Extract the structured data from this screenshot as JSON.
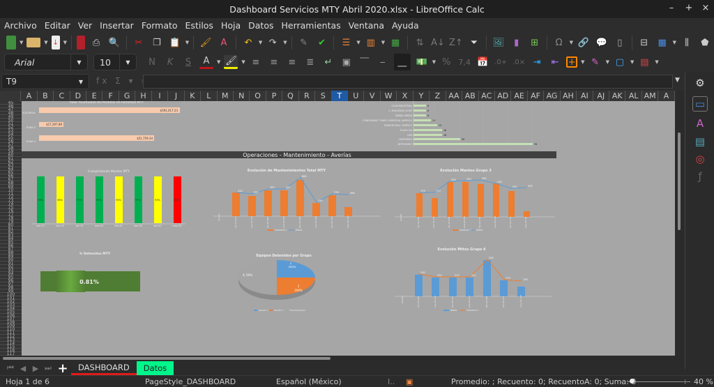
{
  "window": {
    "title": "Dashboard Servicios MTY Abril 2020.xlsx - LibreOffice Calc",
    "controls": [
      "minimize",
      "maximize",
      "close"
    ]
  },
  "menu": [
    "Archivo",
    "Editar",
    "Ver",
    "Insertar",
    "Formato",
    "Estilos",
    "Hoja",
    "Datos",
    "Herramientas",
    "Ventana",
    "Ayuda"
  ],
  "formatting": {
    "font_name": "Arial",
    "font_size": "10",
    "bold": "N",
    "italic": "K",
    "underline": "S",
    "font_color": "#c0141c",
    "highlight_color": "#f0f000"
  },
  "formula_bar": {
    "cell_ref": "T9",
    "content": ""
  },
  "columns": [
    "A",
    "B",
    "C",
    "D",
    "E",
    "F",
    "G",
    "H",
    "I",
    "J",
    "K",
    "L",
    "M",
    "N",
    "O",
    "P",
    "Q",
    "R",
    "S",
    "T",
    "U",
    "V",
    "W",
    "X",
    "Y",
    "Z",
    "AA",
    "AB",
    "AC",
    "AD",
    "AE",
    "AF",
    "AG",
    "AH",
    "AI",
    "AJ",
    "AK",
    "AL",
    "AM",
    "A"
  ],
  "selected_column": "T",
  "rows_visible": {
    "first": 45,
    "last": 125
  },
  "section_banner": "Operaciones - Mantenimiento - Averías",
  "chart_data": [
    {
      "type": "bar",
      "orientation": "horizontal",
      "title": "Valor Acumulado de Perdidas en Portafolio MTY",
      "categories": [
        "SUCURSAL",
        "ZONA 5",
        "ZONA 4"
      ],
      "values": [
        591017.23,
        17297.89,
        51759.34
      ],
      "value_labels": [
        "$591,017.23",
        "$17,297.89",
        "$51,759.34"
      ],
      "color": "#f8cbad"
    },
    {
      "type": "bar",
      "orientation": "horizontal",
      "title": "",
      "categories": [
        "CLUB INDUSTRIAL",
        "C. MUGUERZA HOSP",
        "SIERRA GREEN",
        "CONDOMINIO TORRE COMERCIAL AMERICA",
        "FASHION MALL TAMPICO",
        "PLAZA SIA",
        "HEB",
        "CINTERMEX",
        "METRORREY"
      ],
      "values": [
        8,
        8,
        8,
        11,
        15,
        18,
        18,
        30,
        76
      ],
      "color": "#c5e0b4"
    },
    {
      "type": "bar",
      "title": "Cumplimiento Mantos MTY",
      "categories": [
        "oct-19",
        "nov-19",
        "dic-19",
        "ene-20",
        "feb-20",
        "mar-20",
        "abr-20",
        "may-20"
      ],
      "values": [
        99,
        96,
        97,
        97,
        95,
        97,
        93,
        65
      ],
      "value_labels": [
        "99%",
        "96%",
        "97%",
        "97%",
        "95%",
        "97%",
        "93%",
        "65%"
      ],
      "colors": [
        "#00b050",
        "#ffff00",
        "#00b050",
        "#00b050",
        "#ffff00",
        "#00b050",
        "#ffff00",
        "#ff0000"
      ]
    },
    {
      "type": "bar+line",
      "title": "Evolución de Mantenimientos Total MTY",
      "categories": [
        "oct-19",
        "nov-19",
        "dic-19",
        "ene-20",
        "feb-20",
        "mar-20",
        "abr-20",
        "may-20"
      ],
      "series": [
        {
          "name": "Columna C",
          "type": "bar",
          "color": "#ed7d31",
          "values": [
            412,
            357,
            420,
            427,
            660,
            240,
            376,
            164
          ]
        },
        {
          "name": "Datos",
          "type": "line",
          "color": "#5b9bd5",
          "values": [
            412,
            357,
            420,
            427,
            660,
            240,
            376,
            364
          ]
        }
      ]
    },
    {
      "type": "bar+line",
      "title": "Evolución Mantos Grupo 3",
      "categories": [
        "oct-19",
        "nov-19",
        "dic-19",
        "ene-20",
        "feb-20",
        "mar-20",
        "abr-20",
        "may-20"
      ],
      "series": [
        {
          "name": "Columna B",
          "type": "bar",
          "color": "#ed7d31",
          "values": [
            179,
            133,
            250,
            250,
            237,
            232,
            178,
            40
          ]
        },
        {
          "name": "Datos",
          "type": "line",
          "color": "#5b9bd5",
          "values": [
            179,
            173,
            250,
            250,
            262,
            240,
            201,
            205
          ]
        }
      ]
    },
    {
      "type": "kpi",
      "title": "% Detenidos MTY",
      "value": "0.81%",
      "color": "#4f7f32"
    },
    {
      "type": "pie",
      "title": "Equipos Detenidos por Grupo",
      "categories": [
        "GRUPO 4",
        "GRUPO 5",
        "Total Resultado"
      ],
      "values": [
        2,
        2,
        4
      ],
      "value_labels": [
        "2; 200%",
        "2; 200%",
        "4; 50%"
      ],
      "colors": [
        "#5b9bd5",
        "#ed7d31",
        "#a5a5a5"
      ]
    },
    {
      "type": "bar+line",
      "title": "Evolución Mttos Grupo 4",
      "categories": [
        "oct-19",
        "nov-19",
        "dic-19",
        "ene-20",
        "feb-20",
        "abr-20",
        "may-20"
      ],
      "series": [
        {
          "name": "Datos",
          "type": "bar",
          "color": "#5b9bd5",
          "values": [
            230,
            214,
            212,
            211,
            300,
            170,
            120
          ]
        },
        {
          "name": "Columna C",
          "type": "line",
          "color": "#ed7d31",
          "values": [
            230,
            214,
            212,
            211,
            300,
            170,
            150
          ]
        }
      ]
    }
  ],
  "sheet_tabs": [
    {
      "label": "DASHBOARD",
      "active": true
    },
    {
      "label": "Datos",
      "color": "#00f58a"
    }
  ],
  "status": {
    "sheet": "Hoja 1 de 6",
    "page_style": "PageStyle_DASHBOARD",
    "language": "Español (México)",
    "summary": "Promedio: ; Recuento: 0; RecuentoA: 0; Suma: 0",
    "zoom": "40 %"
  }
}
